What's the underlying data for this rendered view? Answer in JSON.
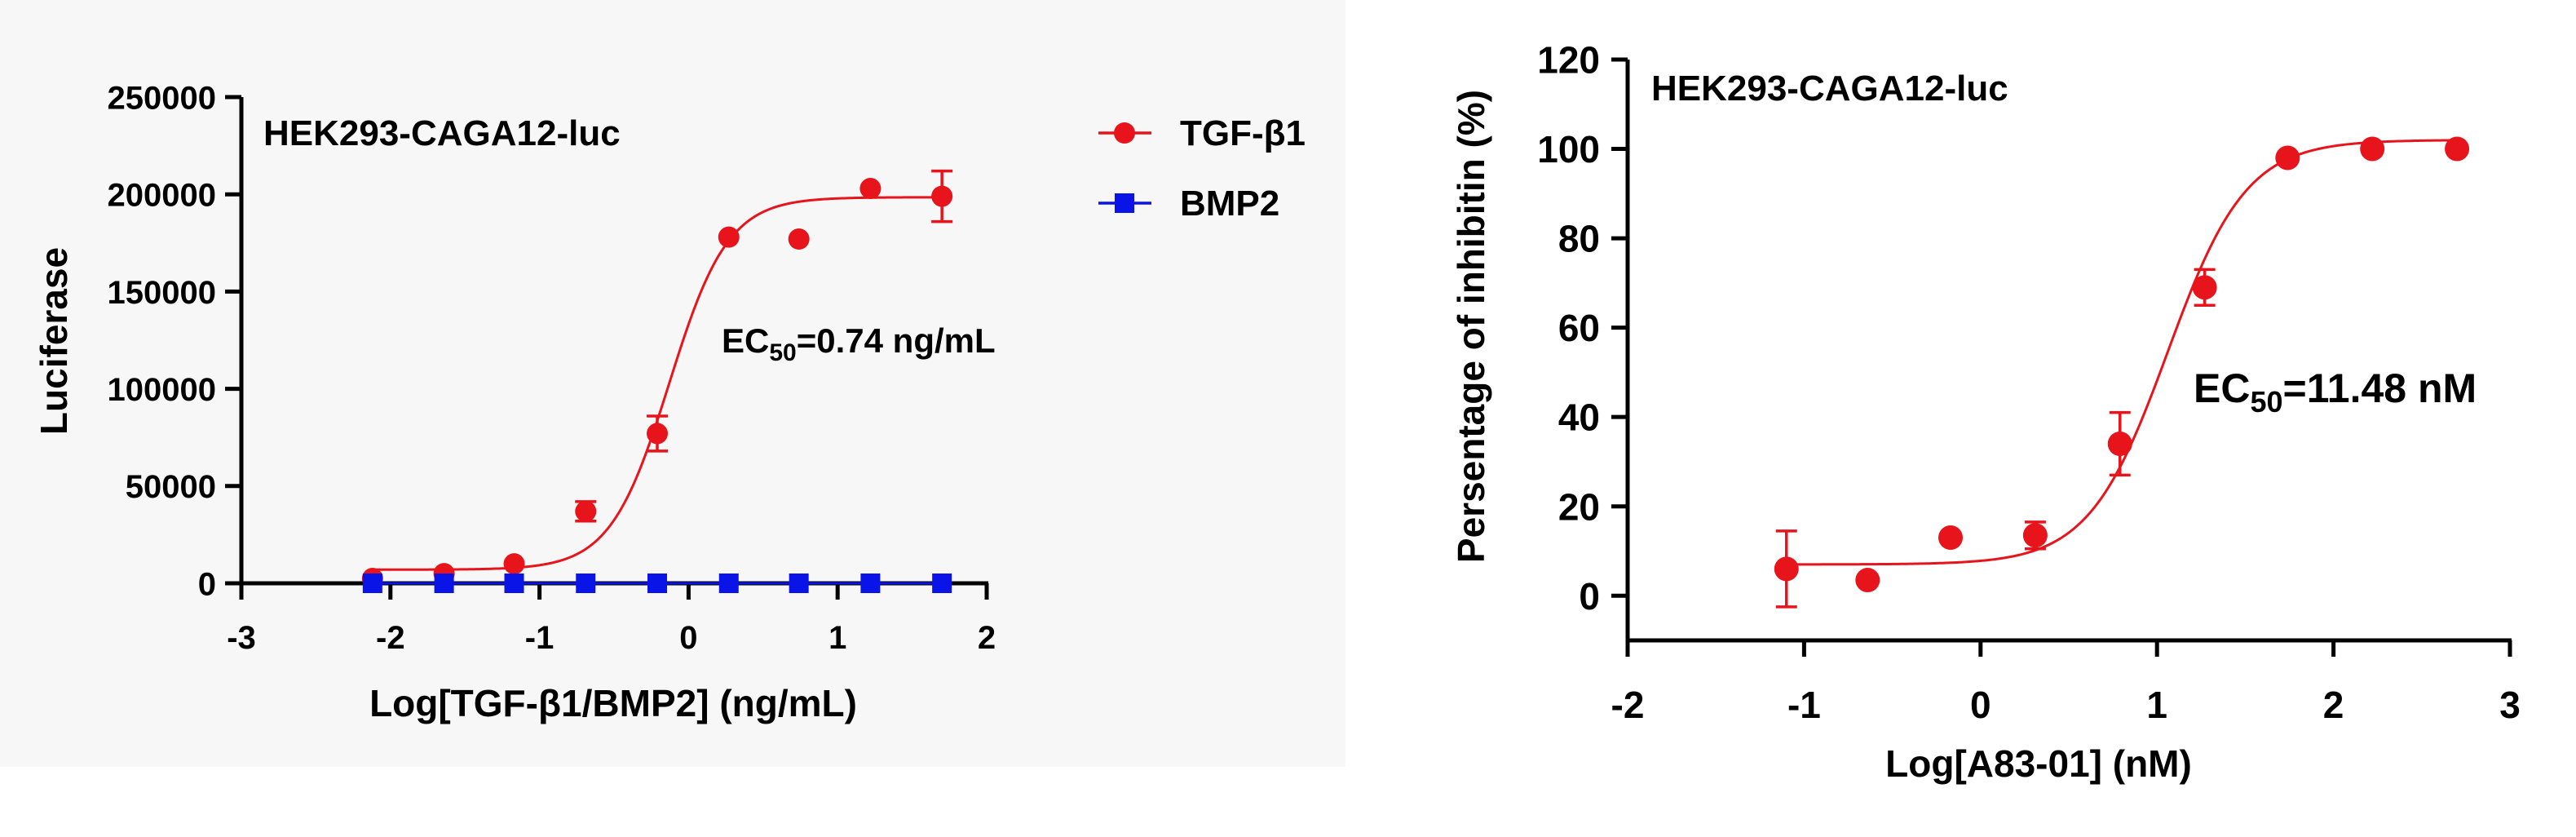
{
  "colors": {
    "tgf": "#e8141b",
    "bmp": "#0a14e6",
    "axis": "#000000"
  },
  "chart_data": [
    {
      "type": "scatter",
      "title": "HEK293-CAGA12-luc",
      "xlabel": "Log[TGF-β1/BMP2] (ng/mL)",
      "ylabel": "Luciferase",
      "xlim": [
        -3,
        2
      ],
      "ylim": [
        0,
        250000
      ],
      "x_ticks": [
        "-3",
        "-2",
        "-1",
        "0",
        "1",
        "2"
      ],
      "y_ticks": [
        "0",
        "50000",
        "100000",
        "150000",
        "200000",
        "250000"
      ],
      "annotation": {
        "prefix": "EC",
        "sub": "50",
        "suffix": "=0.74 ng/mL"
      },
      "legend_position": "top-right",
      "series": [
        {
          "name": "TGF-β1",
          "marker": "circle",
          "x": [
            -2.12,
            -1.64,
            -1.17,
            -0.69,
            -0.21,
            0.27,
            0.74,
            1.22,
            1.7
          ],
          "y": [
            2500,
            5000,
            10000,
            37000,
            77000,
            178000,
            177000,
            203000,
            199000
          ],
          "err": [
            0,
            0,
            0,
            5000,
            9000,
            0,
            0,
            0,
            13000
          ],
          "fit": {
            "bottom": 7000,
            "top": 198500,
            "logEC50": -0.13,
            "hill": 2.2
          }
        },
        {
          "name": "BMP2",
          "marker": "square",
          "x": [
            -2.12,
            -1.64,
            -1.17,
            -0.69,
            -0.21,
            0.27,
            0.74,
            1.22,
            1.7
          ],
          "y": [
            0,
            0,
            0,
            0,
            0,
            0,
            0,
            0,
            0
          ],
          "err": [
            0,
            0,
            0,
            0,
            0,
            0,
            0,
            0,
            0
          ],
          "fit": {
            "bottom": 0,
            "top": 0,
            "logEC50": 0,
            "hill": 1
          }
        }
      ]
    },
    {
      "type": "scatter",
      "title": "HEK293-CAGA12-luc",
      "xlabel": "Log[A83-01] (nM)",
      "ylabel": "Persentage of inhibitin (%)",
      "xlim": [
        -2,
        3
      ],
      "ylim": [
        -10,
        120
      ],
      "x_ticks": [
        "-2",
        "-1",
        "0",
        "1",
        "2",
        "3"
      ],
      "y_ticks": [
        "0",
        "20",
        "40",
        "60",
        "80",
        "100",
        "120"
      ],
      "annotation": {
        "prefix": "EC",
        "sub": "50",
        "suffix": "=11.48 nM"
      },
      "series": [
        {
          "name": "A83-01",
          "marker": "circle",
          "x": [
            -1.1,
            -0.64,
            -0.17,
            0.31,
            0.79,
            1.27,
            1.74,
            2.22,
            2.7
          ],
          "y": [
            6,
            3.5,
            13,
            13.5,
            34,
            69,
            98,
            100,
            100
          ],
          "err": [
            8.5,
            0,
            0,
            3,
            7,
            4,
            0,
            0,
            0
          ],
          "fit": {
            "bottom": 7,
            "top": 102,
            "logEC50": 1.06,
            "hill": 1.95
          }
        }
      ]
    }
  ]
}
